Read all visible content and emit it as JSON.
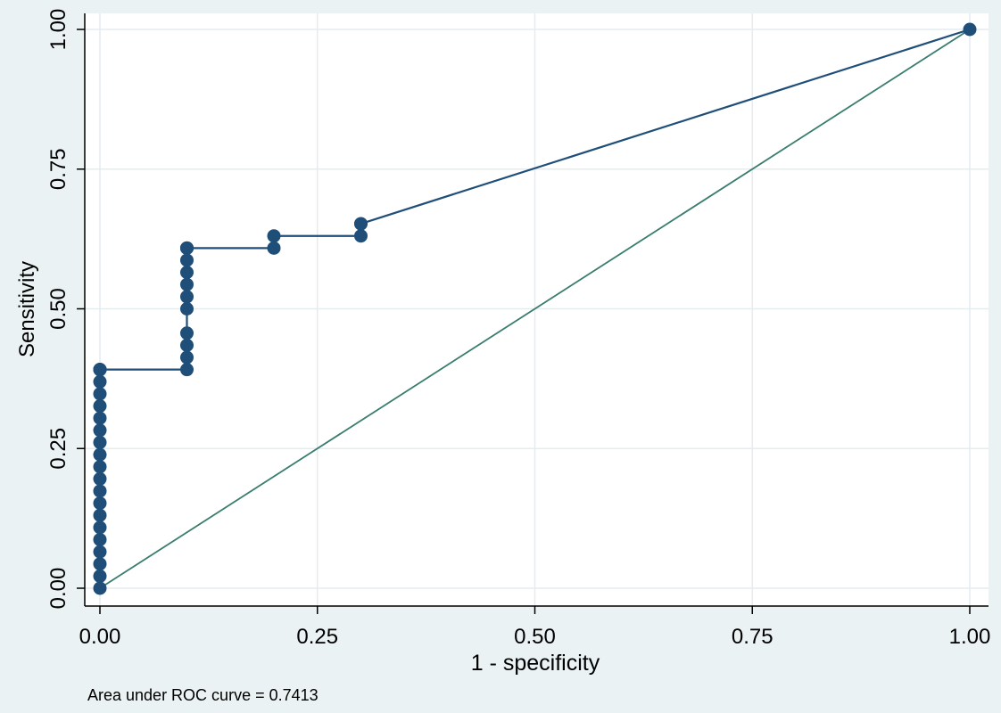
{
  "chart_data": {
    "type": "line",
    "title": "",
    "xlabel": "1 - specificity",
    "ylabel": "Sensitivity",
    "xlim": [
      0,
      1
    ],
    "ylim": [
      0,
      1
    ],
    "xticks": [
      0,
      0.25,
      0.5,
      0.75,
      1
    ],
    "xtick_labels": [
      "0.00",
      "0.25",
      "0.50",
      "0.75",
      "1.00"
    ],
    "yticks": [
      0,
      0.25,
      0.5,
      0.75,
      1
    ],
    "ytick_labels": [
      "0.00",
      "0.25",
      "0.50",
      "0.75",
      "1.00"
    ],
    "grid": true,
    "note": "Area under ROC curve = 0.7413",
    "colors": {
      "background": "#eaf2f3",
      "plot_area": "#ffffff",
      "grid": "#e4ecef",
      "roc_curve": "#1f4e79",
      "reference_line": "#3a7d6e"
    },
    "series": [
      {
        "type": "line-marker",
        "x": [
          0,
          0,
          0,
          0,
          0,
          0,
          0,
          0,
          0,
          0,
          0,
          0,
          0,
          0,
          0,
          0,
          0,
          0,
          0,
          0,
          0,
          0,
          0.1,
          0.1,
          0.1,
          0.1,
          0.1,
          0.1,
          0.1,
          0.1,
          0.1,
          0.1,
          0.1,
          0.1,
          0.2,
          0.2,
          0.3,
          0.3,
          0.3,
          1.0
        ],
        "y": [
          0,
          0.0217,
          0.0435,
          0.0652,
          0.087,
          0.1087,
          0.1304,
          0.1522,
          0.1739,
          0.1957,
          0.2174,
          0.2391,
          0.2609,
          0.2826,
          0.3043,
          0.3261,
          0.3478,
          0.3696,
          0.3913,
          0.3913,
          0.3913,
          0.3913,
          0.3913,
          0.413,
          0.4348,
          0.4565,
          0.5,
          0.5217,
          0.5435,
          0.5652,
          0.587,
          0.6087,
          0.6087,
          0.6087,
          0.6087,
          0.6304,
          0.6304,
          0.6522,
          0.6522,
          1.0
        ]
      },
      {
        "type": "reference",
        "x": [
          0,
          1
        ],
        "y": [
          0,
          1
        ]
      }
    ]
  }
}
